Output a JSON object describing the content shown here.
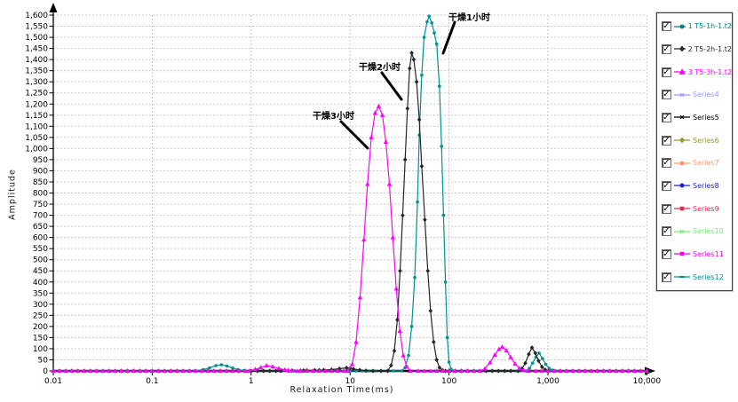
{
  "annotations": [
    {
      "text": "干燥1小时"
    },
    {
      "text": "干燥2小时"
    },
    {
      "text": "干燥3小时"
    }
  ],
  "legend": {
    "items": [
      {
        "label": "1 T5-1h-1.t2",
        "color": "#008080",
        "marker": "circle",
        "checked": true
      },
      {
        "label": "2 T5-2h-1.t2",
        "color": "#2b2b2b",
        "marker": "diamond",
        "checked": true
      },
      {
        "label": "3 T5-3h-1.t2",
        "color": "#ff00ff",
        "marker": "triangle",
        "checked": true
      },
      {
        "label": "Series4",
        "color": "#9898ff",
        "marker": "cross",
        "checked": true
      },
      {
        "label": "Series5",
        "color": "#000000",
        "marker": "cross",
        "checked": true
      },
      {
        "label": "Series6",
        "color": "#98982e",
        "marker": "diamond",
        "checked": true
      },
      {
        "label": "Series7",
        "color": "#ff9868",
        "marker": "circle",
        "checked": true
      },
      {
        "label": "Series8",
        "color": "#2222cc",
        "marker": "circle",
        "checked": true
      },
      {
        "label": "Series9",
        "color": "#e02a50",
        "marker": "square",
        "checked": true
      },
      {
        "label": "Series10",
        "color": "#70ee70",
        "marker": "cross",
        "checked": true
      },
      {
        "label": "Series11",
        "color": "#ee00ee",
        "marker": "square",
        "checked": true
      },
      {
        "label": "Series12",
        "color": "#009090",
        "marker": "dash",
        "checked": true
      }
    ]
  },
  "chart_data": {
    "type": "line",
    "xscale": "log",
    "title": "",
    "xlabel": "Relaxation Time(ms)",
    "ylabel": "Amplitude",
    "xlim": [
      0.01,
      10000
    ],
    "ylim": [
      0,
      1600
    ],
    "grid": true,
    "legend_position": "right",
    "x_tick_labels": [
      "0.01",
      "0.1",
      "1",
      "10",
      "100",
      "1,000",
      "10,000"
    ],
    "y_tick_step": 50,
    "y_tick_labels": [
      "0",
      "50",
      "100",
      "150",
      "200",
      "250",
      "300",
      "350",
      "400",
      "450",
      "500",
      "550",
      "600",
      "650",
      "700",
      "750",
      "800",
      "850",
      "900",
      "950",
      "1,000",
      "1,050",
      "1,100",
      "1,150",
      "1,200",
      "1,250",
      "1,300",
      "1,350",
      "1,400",
      "1,450",
      "1,500",
      "1,550",
      "1,600"
    ],
    "series": [
      {
        "name": "1 T5-1h-1.t2",
        "annotation": "干燥1小时",
        "color": "#009191",
        "marker": "circle",
        "points": [
          [
            0.01,
            0
          ],
          [
            0.27,
            0
          ],
          [
            0.33,
            6
          ],
          [
            0.38,
            14
          ],
          [
            0.44,
            24
          ],
          [
            0.5,
            28
          ],
          [
            0.57,
            22
          ],
          [
            0.65,
            13
          ],
          [
            0.74,
            6
          ],
          [
            0.85,
            2
          ],
          [
            0.97,
            0
          ],
          [
            33,
            0
          ],
          [
            36,
            15
          ],
          [
            39,
            70
          ],
          [
            42,
            200
          ],
          [
            45,
            420
          ],
          [
            48,
            760
          ],
          [
            50,
            1060
          ],
          [
            53,
            1330
          ],
          [
            56,
            1500
          ],
          [
            60,
            1570
          ],
          [
            63,
            1595
          ],
          [
            67,
            1565
          ],
          [
            71,
            1520
          ],
          [
            75,
            1470
          ],
          [
            80,
            1280
          ],
          [
            84,
            1010
          ],
          [
            88,
            700
          ],
          [
            92,
            400
          ],
          [
            96,
            150
          ],
          [
            100,
            40
          ],
          [
            105,
            8
          ],
          [
            110,
            0
          ],
          [
            600,
            0
          ],
          [
            650,
            12
          ],
          [
            700,
            35
          ],
          [
            755,
            62
          ],
          [
            815,
            80
          ],
          [
            880,
            56
          ],
          [
            950,
            30
          ],
          [
            1030,
            12
          ],
          [
            1110,
            3
          ],
          [
            1200,
            0
          ],
          [
            10000,
            0
          ]
        ]
      },
      {
        "name": "2 T5-2h-1.t2",
        "annotation": "干燥2小时",
        "color": "#262626",
        "marker": "diamond",
        "points": [
          [
            0.01,
            0
          ],
          [
            2,
            0
          ],
          [
            2.6,
            1
          ],
          [
            3.4,
            2
          ],
          [
            4.4,
            3
          ],
          [
            5.4,
            4
          ],
          [
            6.5,
            6
          ],
          [
            7.8,
            10
          ],
          [
            9.2,
            14
          ],
          [
            10.8,
            9
          ],
          [
            12.5,
            4
          ],
          [
            14.5,
            1
          ],
          [
            17,
            0
          ],
          [
            24,
            0
          ],
          [
            26,
            25
          ],
          [
            28,
            90
          ],
          [
            30,
            230
          ],
          [
            32,
            450
          ],
          [
            34,
            700
          ],
          [
            36,
            950
          ],
          [
            38,
            1180
          ],
          [
            40,
            1360
          ],
          [
            42,
            1430
          ],
          [
            44,
            1400
          ],
          [
            47,
            1300
          ],
          [
            50,
            1130
          ],
          [
            53,
            920
          ],
          [
            57,
            680
          ],
          [
            61,
            450
          ],
          [
            65,
            270
          ],
          [
            70,
            130
          ],
          [
            75,
            50
          ],
          [
            80,
            15
          ],
          [
            86,
            3
          ],
          [
            92,
            0
          ],
          [
            500,
            0
          ],
          [
            545,
            10
          ],
          [
            590,
            35
          ],
          [
            640,
            75
          ],
          [
            690,
            105
          ],
          [
            745,
            80
          ],
          [
            805,
            45
          ],
          [
            870,
            18
          ],
          [
            940,
            5
          ],
          [
            1010,
            0
          ],
          [
            10000,
            0
          ]
        ]
      },
      {
        "name": "3 T5-3h-1.t2",
        "annotation": "干燥3小时",
        "color": "#ff00ff",
        "marker": "triangle",
        "points": [
          [
            0.01,
            0
          ],
          [
            0.95,
            0
          ],
          [
            1.1,
            7
          ],
          [
            1.25,
            15
          ],
          [
            1.43,
            24
          ],
          [
            1.65,
            19
          ],
          [
            1.9,
            11
          ],
          [
            2.2,
            5
          ],
          [
            2.55,
            1
          ],
          [
            2.9,
            0
          ],
          [
            9.5,
            0
          ],
          [
            10.5,
            30
          ],
          [
            11.5,
            130
          ],
          [
            12.6,
            330
          ],
          [
            13.8,
            590
          ],
          [
            15,
            840
          ],
          [
            16.4,
            1050
          ],
          [
            17.9,
            1160
          ],
          [
            19.5,
            1190
          ],
          [
            21.2,
            1150
          ],
          [
            23,
            1030
          ],
          [
            25,
            840
          ],
          [
            27,
            600
          ],
          [
            29.3,
            370
          ],
          [
            31.8,
            180
          ],
          [
            34.5,
            70
          ],
          [
            37.4,
            20
          ],
          [
            40.5,
            0
          ],
          [
            205,
            0
          ],
          [
            230,
            10
          ],
          [
            260,
            38
          ],
          [
            290,
            72
          ],
          [
            320,
            98
          ],
          [
            345,
            108
          ],
          [
            380,
            92
          ],
          [
            420,
            62
          ],
          [
            465,
            32
          ],
          [
            515,
            12
          ],
          [
            570,
            3
          ],
          [
            630,
            0
          ],
          [
            10000,
            0
          ]
        ]
      }
    ]
  }
}
